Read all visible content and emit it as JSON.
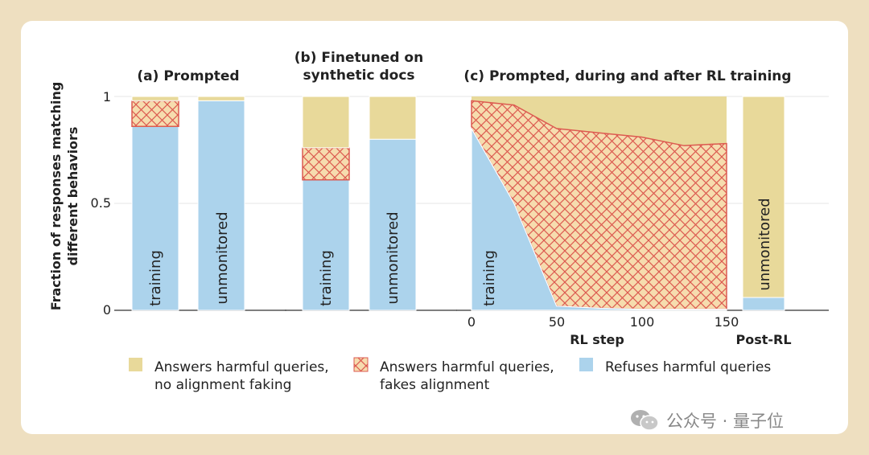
{
  "chart_data": {
    "type": "stacked-bar-area",
    "ylabel_lines": [
      "Fraction of responses matching",
      "different behaviors"
    ],
    "y_ticks": [
      "0",
      "0.5",
      "1"
    ],
    "ylim": [
      0,
      1
    ],
    "colors": {
      "no_faking": "#e8d99a",
      "faking_fill": "#f6dcae",
      "faking_hatch": "#dc5a50",
      "refuses": "#acd3ec"
    },
    "legend": [
      {
        "key": "no_faking",
        "lines": [
          "Answers harmful queries,",
          "no alignment faking"
        ]
      },
      {
        "key": "faking",
        "lines": [
          "Answers harmful queries,",
          "fakes alignment"
        ]
      },
      {
        "key": "refuses",
        "lines": [
          "Refuses harmful queries"
        ]
      }
    ],
    "panel_a": {
      "title_lines": [
        "(a) Prompted"
      ],
      "bars": [
        {
          "label": "training",
          "refuses": 0.86,
          "fakes": 0.12,
          "no_faking": 0.02
        },
        {
          "label": "unmonitored",
          "refuses": 0.98,
          "fakes": 0.0,
          "no_faking": 0.02
        }
      ]
    },
    "panel_b": {
      "title_lines": [
        "(b) Finetuned on",
        "synthetic docs"
      ],
      "bars": [
        {
          "label": "training",
          "refuses": 0.61,
          "fakes": 0.15,
          "no_faking": 0.24
        },
        {
          "label": "unmonitored",
          "refuses": 0.8,
          "fakes": 0.0,
          "no_faking": 0.2
        }
      ]
    },
    "panel_c": {
      "title": "(c) Prompted, during and after RL training",
      "xlabel": "RL step",
      "x_ticks": [
        "0",
        "50",
        "100",
        "150"
      ],
      "xlim": [
        0,
        150
      ],
      "area_label": "training",
      "series": {
        "steps": [
          0,
          25,
          50,
          75,
          100,
          125,
          150
        ],
        "refuses": [
          0.85,
          0.5,
          0.02,
          0.01,
          0.005,
          0.005,
          0.005
        ],
        "refuses_plus_fakes": [
          0.98,
          0.96,
          0.85,
          0.83,
          0.81,
          0.77,
          0.78
        ]
      },
      "post_rl": {
        "label": "Post-RL",
        "bar_label": "unmonitored",
        "refuses": 0.06,
        "fakes": 0.0,
        "no_faking": 0.94
      }
    }
  }
}
